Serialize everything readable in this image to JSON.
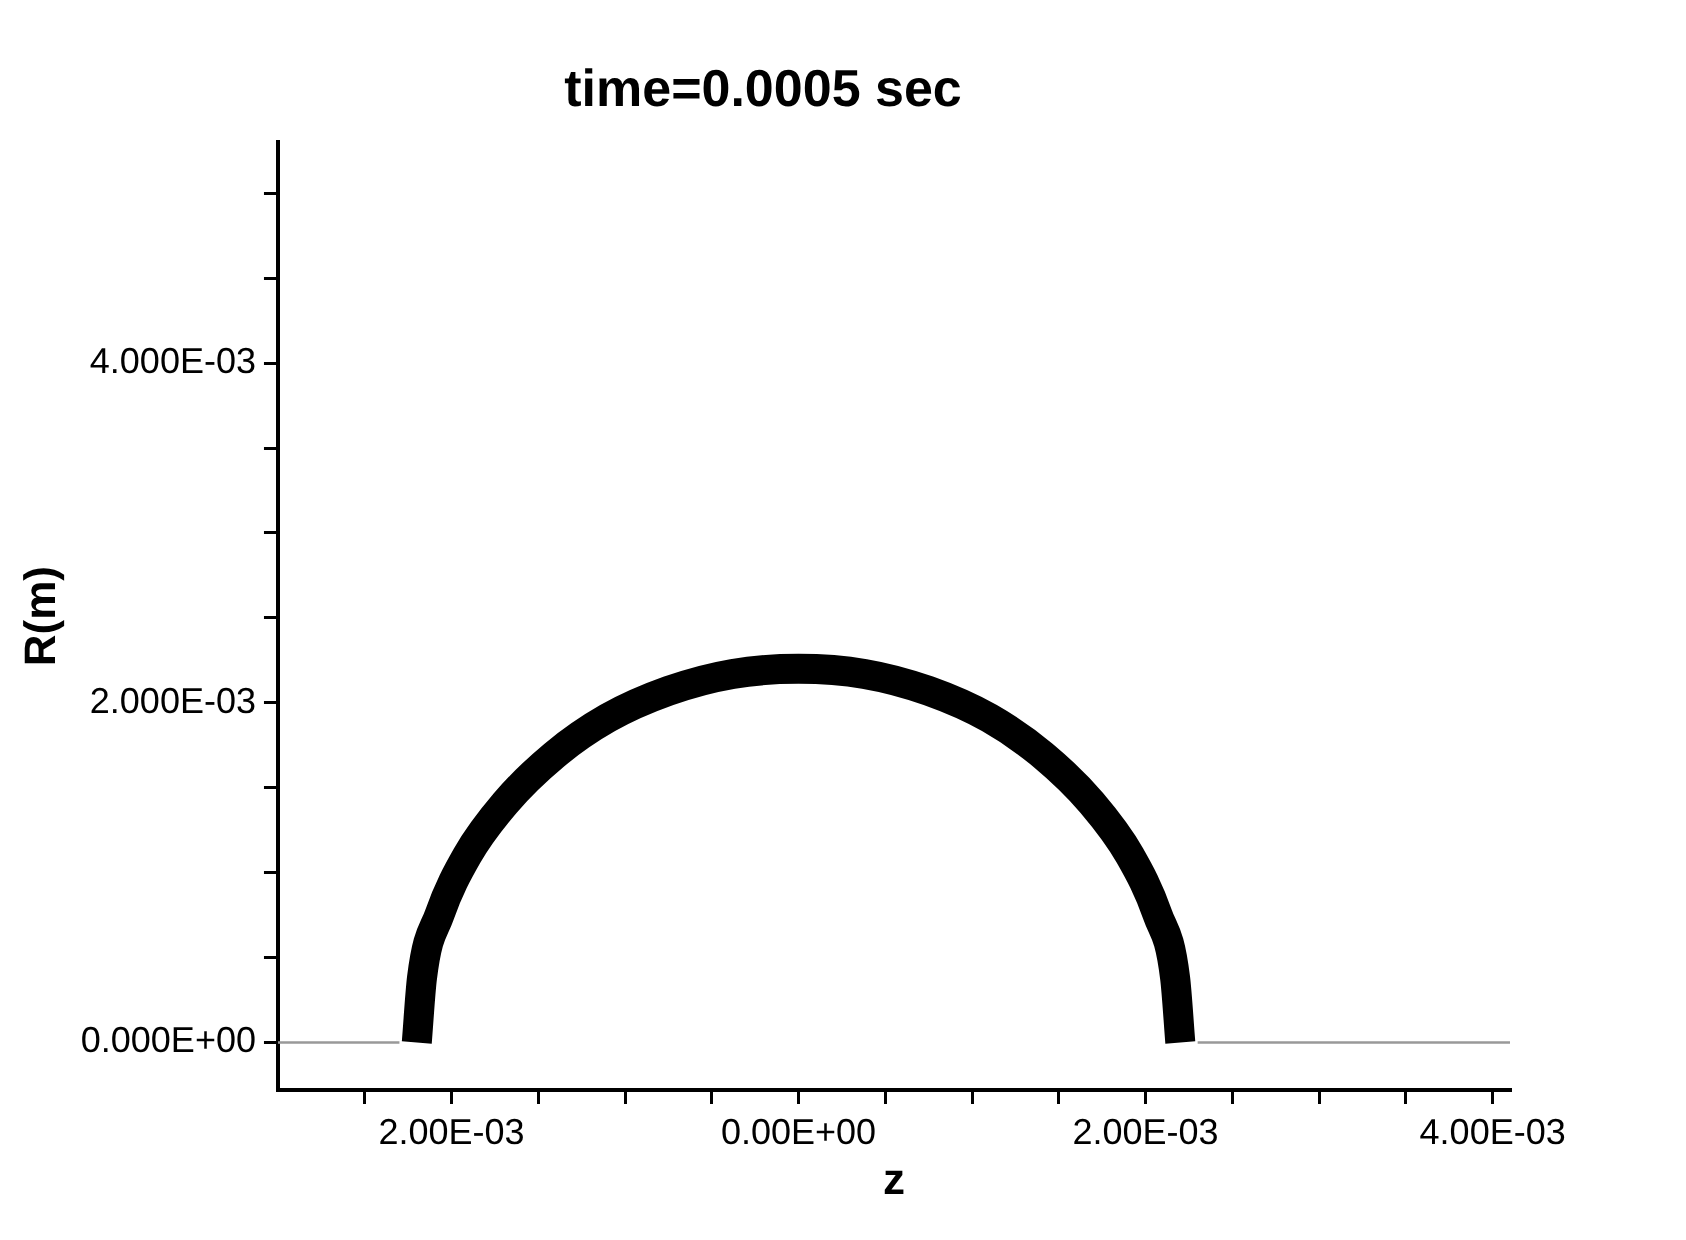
{
  "chart_data": {
    "type": "line",
    "title": "time=0.0005 sec",
    "xlabel": "z",
    "ylabel": "R(m)",
    "marker": "none",
    "line_style": "solid",
    "grid": false,
    "legend": false,
    "xlim": [
      -0.003,
      0.0041
    ],
    "ylim": [
      -0.00028,
      0.0053
    ],
    "xticks": [
      {
        "value": -0.0025,
        "label": null
      },
      {
        "value": -0.002,
        "label": "2.00E-03"
      },
      {
        "value": -0.0015,
        "label": null
      },
      {
        "value": -0.001,
        "label": null
      },
      {
        "value": -0.0005,
        "label": null
      },
      {
        "value": 0,
        "label": "0.00E+00"
      },
      {
        "value": 0.0005,
        "label": null
      },
      {
        "value": 0.001,
        "label": null
      },
      {
        "value": 0.0015,
        "label": null
      },
      {
        "value": 0.002,
        "label": "2.00E-03"
      },
      {
        "value": 0.0025,
        "label": null
      },
      {
        "value": 0.003,
        "label": null
      },
      {
        "value": 0.0035,
        "label": null
      },
      {
        "value": 0.004,
        "label": "4.00E-03"
      }
    ],
    "yticks": [
      {
        "value": 0,
        "label": "0.000E+00"
      },
      {
        "value": 0.0005,
        "label": null
      },
      {
        "value": 0.001,
        "label": null
      },
      {
        "value": 0.0015,
        "label": null
      },
      {
        "value": 0.002,
        "label": "2.000E-03"
      },
      {
        "value": 0.0025,
        "label": null
      },
      {
        "value": 0.003,
        "label": null
      },
      {
        "value": 0.0035,
        "label": null
      },
      {
        "value": 0.004,
        "label": "4.000E-03"
      },
      {
        "value": 0.0045,
        "label": null
      },
      {
        "value": 0.005,
        "label": null
      }
    ],
    "series": [
      {
        "color": "#000000",
        "x": [
          -0.0022,
          -0.00217,
          -0.00207,
          -0.00191,
          -0.00169,
          -0.00141,
          -0.0011,
          -0.00075,
          -0.00038,
          0,
          0.00038,
          0.00075,
          0.0011,
          0.00141,
          0.00169,
          0.00191,
          0.00207,
          0.00217,
          0.0022
        ],
        "values": [
          0,
          0.00038,
          0.00075,
          0.0011,
          0.00141,
          0.00169,
          0.00191,
          0.00207,
          0.00217,
          0.0022,
          0.00217,
          0.00207,
          0.00191,
          0.00169,
          0.00141,
          0.0011,
          0.00075,
          0.00038,
          0
        ]
      },
      {
        "color": "#999999",
        "x": [
          -0.003,
          -0.0023,
          null,
          0.0023,
          0.0041
        ],
        "values": [
          0,
          0,
          null,
          0,
          0
        ]
      }
    ]
  }
}
